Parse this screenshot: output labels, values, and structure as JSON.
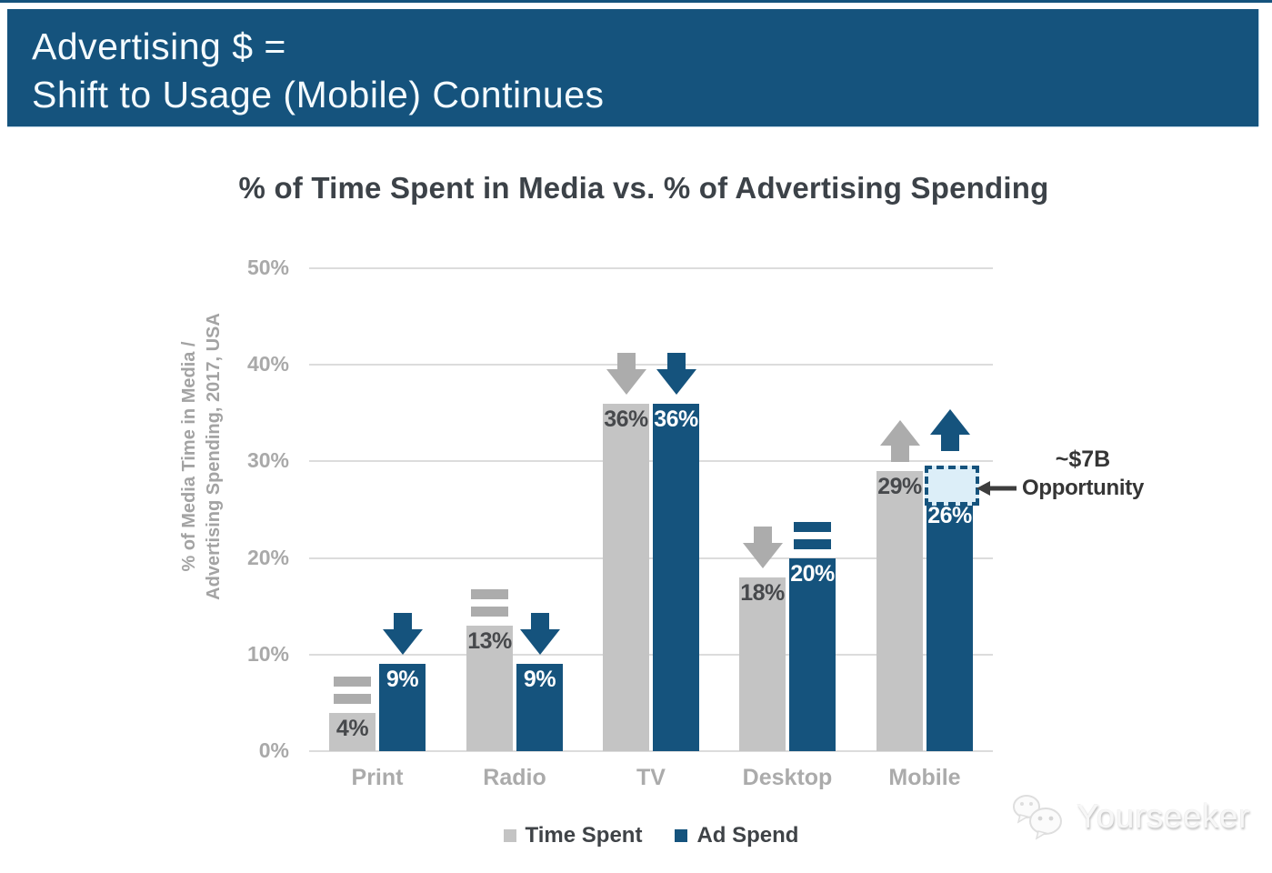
{
  "banner": {
    "line1": "Advertising $ =",
    "line2": "Shift to Usage (Mobile) Continues"
  },
  "chart_data": {
    "type": "bar",
    "title": "% of Time Spent in Media vs. % of Advertising Spending",
    "ylabel_line1": "% of Media Time in Media /",
    "ylabel_line2": "Advertising Spending, 2017, USA",
    "categories": [
      "Print",
      "Radio",
      "TV",
      "Desktop",
      "Mobile"
    ],
    "series": [
      {
        "name": "Time Spent",
        "values": [
          4,
          13,
          36,
          18,
          29
        ],
        "trends": [
          "flat",
          "flat",
          "down",
          "down",
          "up"
        ]
      },
      {
        "name": "Ad Spend",
        "values": [
          9,
          9,
          36,
          20,
          26
        ],
        "trends": [
          "down",
          "down",
          "down",
          "flat",
          "up"
        ]
      }
    ],
    "value_suffix": "%",
    "yticks": [
      "0%",
      "10%",
      "20%",
      "30%",
      "40%",
      "50%"
    ],
    "ylim": [
      0,
      50
    ],
    "grid": true,
    "legend_position": "bottom",
    "legend": [
      "Time Spent",
      "Ad Spend"
    ],
    "annotation": {
      "line1": "~$7B",
      "line2": "Opportunity",
      "target_category": "Mobile",
      "target_series": "Ad Spend"
    },
    "colors": {
      "time_spent_bar": "#c4c4c4",
      "ad_spend_bar": "#15537D",
      "time_spent_trend": "#acacac",
      "ad_spend_trend": "#15537D",
      "time_spent_value_text": "#47494c",
      "ad_spend_value_text": "#ffffff",
      "opportunity_fill": "#dceef8",
      "opportunity_border": "#15537D",
      "banner_bg": "#15537D"
    }
  },
  "watermark": {
    "text": "Yourseeker"
  }
}
